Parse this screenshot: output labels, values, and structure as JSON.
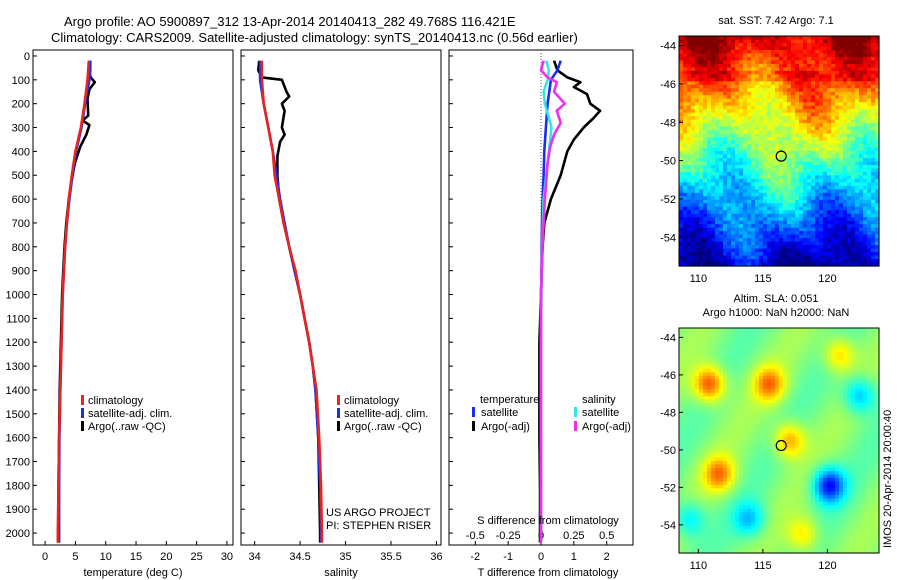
{
  "header": {
    "line1": "Argo profile: AO 5900897_312 13-Apr-2014 20140413_282 49.768S 116.421E",
    "line2": "Climatology: CARS2009. Satellite-adjusted climatology: synTS_20140413.nc (0.56d earlier)"
  },
  "colors": {
    "climatology": "#e8241c",
    "satellite": "#1a2cf0",
    "argo": "#000000",
    "sal_satellite": "#36e6e6",
    "sal_argo": "#ee30ee"
  },
  "panels": {
    "temp": {
      "xlabel": "temperature (deg C)",
      "xticks": [
        "0",
        "5",
        "10",
        "15",
        "20",
        "25",
        "30"
      ],
      "legend": [
        "climatology",
        "satellite-adj. clim.",
        "Argo(..raw -QC)"
      ]
    },
    "sal": {
      "xlabel": "salinity",
      "xticks": [
        "34",
        "34.5",
        "35",
        "35.5",
        "36"
      ],
      "legend": [
        "climatology",
        "satellite-adj. clim.",
        "Argo(..raw -QC)"
      ],
      "credit1": "US ARGO PROJECT",
      "credit2": "PI: STEPHEN RISER"
    },
    "diff": {
      "xlabel": "T difference from climatology",
      "top_label": "S difference from climatology",
      "xticks_t": [
        "-2",
        "-1",
        "0",
        "1",
        "2"
      ],
      "xticks_s": [
        "-0.5",
        "-0.25",
        "0",
        "0.25",
        "0.5"
      ],
      "legend_t_title": "temperature",
      "legend_s_title": "salinity",
      "legend_t": [
        "satellite",
        "Argo(-adj)"
      ],
      "legend_s": [
        "satellite",
        "Argo(-adj)"
      ]
    },
    "yticks": [
      "0",
      "100",
      "200",
      "300",
      "400",
      "500",
      "600",
      "700",
      "800",
      "900",
      "1000",
      "1100",
      "1200",
      "1300",
      "1400",
      "1500",
      "1600",
      "1700",
      "1800",
      "1900",
      "2000"
    ],
    "maps": {
      "sst_title": "sat. SST: 7.42  Argo: 7.1",
      "sla_title1": "Altim. SLA: 0.051",
      "sla_title2": "Argo h1000: NaN h2000: NaN",
      "yticks": [
        "-44",
        "-46",
        "-48",
        "-50",
        "-52",
        "-54"
      ],
      "xticks": [
        "110",
        "115",
        "120"
      ],
      "vertical_label": "IMOS 20-Apr-2014 20:00:40"
    }
  },
  "chart_data": [
    {
      "type": "line",
      "title": "",
      "xlabel": "temperature (deg C)",
      "ylabel": "",
      "xlim": [
        -2,
        31
      ],
      "ylim": [
        2050,
        0
      ],
      "series": [
        {
          "name": "climatology",
          "points": [
            [
              7.2,
              20
            ],
            [
              7.1,
              60
            ],
            [
              7,
              100
            ],
            [
              6.5,
              200
            ],
            [
              5.9,
              300
            ],
            [
              5.0,
              400
            ],
            [
              4.4,
              500
            ],
            [
              3.9,
              600
            ],
            [
              3.6,
              700
            ],
            [
              3.3,
              800
            ],
            [
              3.1,
              900
            ],
            [
              2.9,
              1000
            ],
            [
              2.7,
              1200
            ],
            [
              2.5,
              1400
            ],
            [
              2.3,
              1600
            ],
            [
              2.2,
              1800
            ],
            [
              2.1,
              2000
            ],
            [
              2.1,
              2040
            ]
          ]
        },
        {
          "name": "satellite-adj. clim.",
          "points": [
            [
              7.45,
              20
            ],
            [
              7.45,
              60
            ],
            [
              7.3,
              100
            ],
            [
              6.6,
              200
            ],
            [
              6.0,
              300
            ],
            [
              5.1,
              400
            ],
            [
              4.5,
              500
            ],
            [
              4.0,
              600
            ],
            [
              3.6,
              700
            ],
            [
              3.3,
              800
            ],
            [
              3.1,
              900
            ],
            [
              2.9,
              1000
            ],
            [
              2.7,
              1200
            ],
            [
              2.5,
              1400
            ],
            [
              2.35,
              1600
            ],
            [
              2.3,
              1800
            ],
            [
              2.3,
              2000
            ],
            [
              2.3,
              2040
            ]
          ]
        },
        {
          "name": "Argo(..raw -QC)",
          "points": [
            [
              7.3,
              20
            ],
            [
              7.2,
              60
            ],
            [
              7.5,
              90
            ],
            [
              8.2,
              110
            ],
            [
              7.3,
              140
            ],
            [
              7.0,
              180
            ],
            [
              7.1,
              250
            ],
            [
              6.2,
              270
            ],
            [
              7.3,
              290
            ],
            [
              6.8,
              330
            ],
            [
              5.8,
              380
            ],
            [
              4.9,
              450
            ],
            [
              4.4,
              520
            ],
            [
              3.9,
              600
            ],
            [
              3.5,
              700
            ],
            [
              3.2,
              800
            ],
            [
              3.0,
              900
            ],
            [
              2.8,
              1000
            ],
            [
              2.6,
              1200
            ],
            [
              2.4,
              1400
            ],
            [
              2.3,
              1600
            ],
            [
              2.2,
              1800
            ],
            [
              2.2,
              2000
            ],
            [
              2.2,
              2040
            ]
          ]
        }
      ]
    },
    {
      "type": "line",
      "title": "",
      "xlabel": "salinity",
      "ylabel": "",
      "xlim": [
        33.85,
        36.05
      ],
      "ylim": [
        2050,
        0
      ],
      "series": [
        {
          "name": "climatology",
          "points": [
            [
              34.08,
              20
            ],
            [
              34.08,
              100
            ],
            [
              34.1,
              200
            ],
            [
              34.15,
              300
            ],
            [
              34.2,
              400
            ],
            [
              34.22,
              500
            ],
            [
              34.27,
              600
            ],
            [
              34.32,
              700
            ],
            [
              34.38,
              800
            ],
            [
              34.45,
              900
            ],
            [
              34.5,
              1000
            ],
            [
              34.55,
              1100
            ],
            [
              34.6,
              1200
            ],
            [
              34.64,
              1300
            ],
            [
              34.68,
              1400
            ],
            [
              34.71,
              1600
            ],
            [
              34.73,
              1800
            ],
            [
              34.74,
              2000
            ],
            [
              34.74,
              2040
            ]
          ]
        },
        {
          "name": "satellite-adj. clim.",
          "points": [
            [
              34.06,
              20
            ],
            [
              34.06,
              100
            ],
            [
              34.1,
              200
            ],
            [
              34.15,
              300
            ],
            [
              34.2,
              400
            ],
            [
              34.24,
              500
            ],
            [
              34.28,
              600
            ],
            [
              34.33,
              700
            ],
            [
              34.38,
              800
            ],
            [
              34.44,
              900
            ],
            [
              34.5,
              1000
            ],
            [
              34.55,
              1100
            ],
            [
              34.6,
              1200
            ],
            [
              34.64,
              1300
            ],
            [
              34.67,
              1400
            ],
            [
              34.7,
              1600
            ],
            [
              34.72,
              1800
            ],
            [
              34.73,
              2000
            ],
            [
              34.73,
              2040
            ]
          ]
        },
        {
          "name": "Argo(..raw -QC)",
          "points": [
            [
              34.05,
              20
            ],
            [
              34.04,
              60
            ],
            [
              34.08,
              90
            ],
            [
              34.3,
              100
            ],
            [
              34.35,
              150
            ],
            [
              34.38,
              170
            ],
            [
              34.3,
              200
            ],
            [
              34.33,
              230
            ],
            [
              34.3,
              300
            ],
            [
              34.33,
              330
            ],
            [
              34.28,
              360
            ],
            [
              34.25,
              420
            ],
            [
              34.25,
              500
            ],
            [
              34.27,
              600
            ],
            [
              34.32,
              700
            ],
            [
              34.38,
              800
            ],
            [
              34.44,
              900
            ],
            [
              34.5,
              1000
            ],
            [
              34.55,
              1100
            ],
            [
              34.6,
              1200
            ],
            [
              34.64,
              1300
            ],
            [
              34.67,
              1400
            ],
            [
              34.7,
              1600
            ],
            [
              34.71,
              1800
            ],
            [
              34.72,
              2000
            ],
            [
              34.72,
              2040
            ]
          ]
        }
      ]
    },
    {
      "type": "line",
      "title": "",
      "xlabel": "T difference from climatology",
      "ylabel": "",
      "xlim": [
        -2.8,
        2.8
      ],
      "ylim": [
        2050,
        0
      ],
      "series": [
        {
          "name": "satellite",
          "points": [
            [
              0.6,
              20
            ],
            [
              0.5,
              60
            ],
            [
              0.3,
              100
            ],
            [
              0.2,
              200
            ],
            [
              0.15,
              300
            ],
            [
              0.1,
              400
            ],
            [
              0.08,
              500
            ],
            [
              0.05,
              600
            ],
            [
              0.03,
              700
            ],
            [
              0.02,
              800
            ],
            [
              0.01,
              1000
            ],
            [
              0,
              1200
            ],
            [
              0,
              2040
            ]
          ]
        },
        {
          "name": "Argo(-adj)",
          "points": [
            [
              0.4,
              20
            ],
            [
              0.5,
              60
            ],
            [
              0.8,
              90
            ],
            [
              1.2,
              110
            ],
            [
              1.0,
              130
            ],
            [
              1.4,
              160
            ],
            [
              1.5,
              200
            ],
            [
              1.8,
              230
            ],
            [
              1.6,
              260
            ],
            [
              1.3,
              300
            ],
            [
              1.0,
              350
            ],
            [
              0.8,
              400
            ],
            [
              0.6,
              500
            ],
            [
              0.3,
              600
            ],
            [
              0.1,
              700
            ],
            [
              0.05,
              800
            ],
            [
              0.02,
              900
            ],
            [
              0,
              1000
            ],
            [
              -0.05,
              1200
            ],
            [
              -0.05,
              1400
            ],
            [
              -0.05,
              1600
            ],
            [
              -0.03,
              1800
            ],
            [
              -0.03,
              2000
            ],
            [
              -0.03,
              2040
            ]
          ]
        }
      ]
    },
    {
      "type": "line",
      "title": "",
      "xlabel": "S difference from climatology",
      "ylabel": "",
      "xlim": [
        -0.7,
        0.7
      ],
      "ylim": [
        2050,
        0
      ],
      "series": [
        {
          "name": "satellite",
          "points": [
            [
              0.04,
              20
            ],
            [
              0.06,
              60
            ],
            [
              0.05,
              100
            ],
            [
              0.02,
              150
            ],
            [
              0.03,
              200
            ],
            [
              0.06,
              260
            ],
            [
              0.08,
              300
            ],
            [
              0.06,
              400
            ],
            [
              0.04,
              500
            ],
            [
              0.02,
              600
            ],
            [
              0.01,
              800
            ],
            [
              0,
              1000
            ],
            [
              0,
              2040
            ]
          ]
        },
        {
          "name": "Argo(-adj)",
          "points": [
            [
              0.02,
              20
            ],
            [
              0,
              60
            ],
            [
              0.05,
              90
            ],
            [
              0.12,
              110
            ],
            [
              0.1,
              150
            ],
            [
              0.18,
              200
            ],
            [
              0.12,
              230
            ],
            [
              0.15,
              280
            ],
            [
              0.1,
              330
            ],
            [
              0.07,
              380
            ],
            [
              0.05,
              450
            ],
            [
              0.03,
              600
            ],
            [
              0.02,
              700
            ],
            [
              0.01,
              800
            ],
            [
              0,
              1000
            ],
            [
              0,
              2040
            ]
          ]
        }
      ]
    },
    {
      "type": "heatmap",
      "title": "sat. SST: 7.42  Argo: 7.1",
      "xlim": [
        108.5,
        124
      ],
      "ylim": [
        -55.5,
        -43.5
      ],
      "marker": {
        "lon": 116.421,
        "lat": -49.768
      }
    },
    {
      "type": "heatmap",
      "title": "Altim. SLA: 0.051",
      "xlim": [
        108.5,
        124
      ],
      "ylim": [
        -55.5,
        -43.5
      ],
      "marker": {
        "lon": 116.421,
        "lat": -49.768
      }
    }
  ]
}
